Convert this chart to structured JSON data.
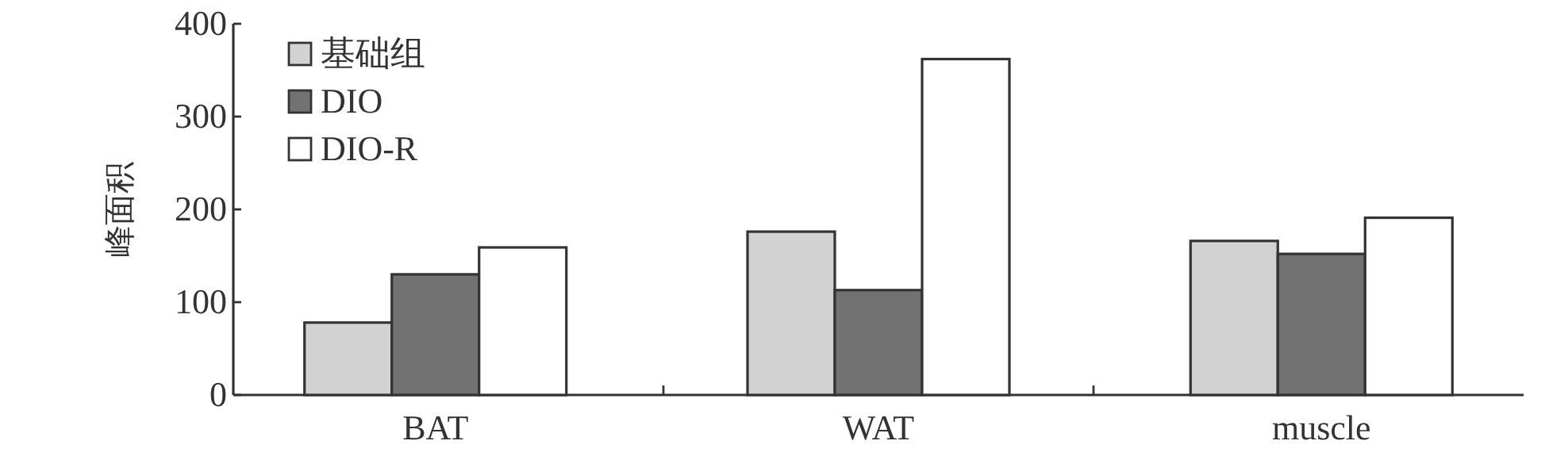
{
  "chart_data": {
    "type": "bar",
    "ylabel": "峰面积",
    "categories": [
      "BAT",
      "WAT",
      "muscle"
    ],
    "series": [
      {
        "name": "基础组",
        "color": "#d2d2d2",
        "values": [
          78,
          176,
          166
        ]
      },
      {
        "name": "DIO",
        "color": "#727272",
        "values": [
          130,
          113,
          152
        ]
      },
      {
        "name": "DIO-R",
        "color": "#ffffff",
        "values": [
          159,
          362,
          191
        ]
      }
    ],
    "ylim": [
      0,
      400
    ],
    "yticks": [
      0,
      100,
      200,
      300,
      400
    ],
    "grid": false,
    "legend": "top left"
  }
}
